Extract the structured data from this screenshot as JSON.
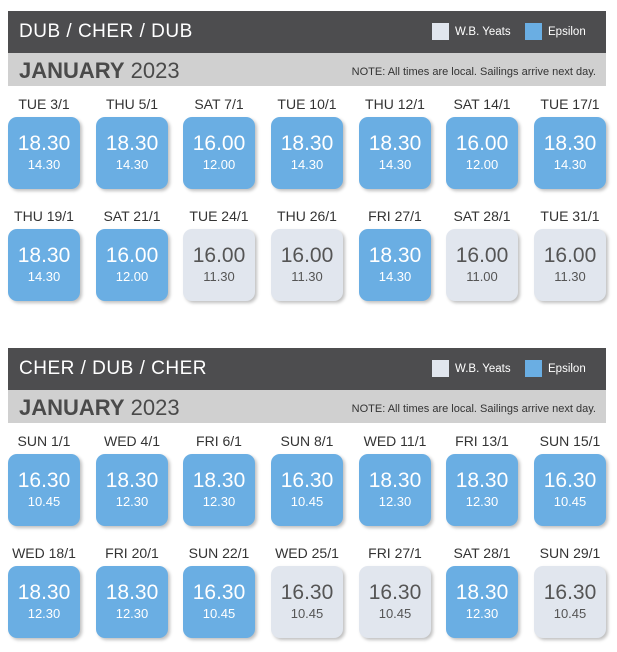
{
  "legend": {
    "wb": "W.B. Yeats",
    "ep": "Epsilon"
  },
  "colors": {
    "epsilon": "#6aaee3",
    "wb_yeats": "#e1e6ee",
    "header": "#4d4d4f"
  },
  "sections": [
    {
      "route": "DUB / CHER / DUB",
      "month_bold": "JANUARY",
      "year": "2023",
      "note": "NOTE: All times are local. Sailings arrive next day.",
      "days": [
        {
          "label": "TUE 3/1",
          "dep": "18.30",
          "arr": "14.30",
          "ship": "ep"
        },
        {
          "label": "THU 5/1",
          "dep": "18.30",
          "arr": "14.30",
          "ship": "ep"
        },
        {
          "label": "SAT 7/1",
          "dep": "16.00",
          "arr": "12.00",
          "ship": "ep"
        },
        {
          "label": "TUE 10/1",
          "dep": "18.30",
          "arr": "14.30",
          "ship": "ep"
        },
        {
          "label": "THU 12/1",
          "dep": "18.30",
          "arr": "14.30",
          "ship": "ep"
        },
        {
          "label": "SAT 14/1",
          "dep": "16.00",
          "arr": "12.00",
          "ship": "ep"
        },
        {
          "label": "TUE 17/1",
          "dep": "18.30",
          "arr": "14.30",
          "ship": "ep"
        },
        {
          "label": "THU 19/1",
          "dep": "18.30",
          "arr": "14.30",
          "ship": "ep"
        },
        {
          "label": "SAT 21/1",
          "dep": "16.00",
          "arr": "12.00",
          "ship": "ep"
        },
        {
          "label": "TUE 24/1",
          "dep": "16.00",
          "arr": "11.30",
          "ship": "wb"
        },
        {
          "label": "THU 26/1",
          "dep": "16.00",
          "arr": "11.30",
          "ship": "wb"
        },
        {
          "label": "FRI 27/1",
          "dep": "18.30",
          "arr": "14.30",
          "ship": "ep"
        },
        {
          "label": "SAT 28/1",
          "dep": "16.00",
          "arr": "11.00",
          "ship": "wb"
        },
        {
          "label": "TUE 31/1",
          "dep": "16.00",
          "arr": "11.30",
          "ship": "wb"
        }
      ]
    },
    {
      "route": "CHER / DUB / CHER",
      "month_bold": "JANUARY",
      "year": "2023",
      "note": "NOTE: All times are local. Sailings arrive next day.",
      "days": [
        {
          "label": "SUN 1/1",
          "dep": "16.30",
          "arr": "10.45",
          "ship": "ep"
        },
        {
          "label": "WED 4/1",
          "dep": "18.30",
          "arr": "12.30",
          "ship": "ep"
        },
        {
          "label": "FRI 6/1",
          "dep": "18.30",
          "arr": "12.30",
          "ship": "ep"
        },
        {
          "label": "SUN 8/1",
          "dep": "16.30",
          "arr": "10.45",
          "ship": "ep"
        },
        {
          "label": "WED 11/1",
          "dep": "18.30",
          "arr": "12.30",
          "ship": "ep"
        },
        {
          "label": "FRI 13/1",
          "dep": "18.30",
          "arr": "12.30",
          "ship": "ep"
        },
        {
          "label": "SUN 15/1",
          "dep": "16.30",
          "arr": "10.45",
          "ship": "ep"
        },
        {
          "label": "WED 18/1",
          "dep": "18.30",
          "arr": "12.30",
          "ship": "ep"
        },
        {
          "label": "FRI 20/1",
          "dep": "18.30",
          "arr": "12.30",
          "ship": "ep"
        },
        {
          "label": "SUN 22/1",
          "dep": "16.30",
          "arr": "10.45",
          "ship": "ep"
        },
        {
          "label": "WED 25/1",
          "dep": "16.30",
          "arr": "10.45",
          "ship": "wb"
        },
        {
          "label": "FRI 27/1",
          "dep": "16.30",
          "arr": "10.45",
          "ship": "wb"
        },
        {
          "label": "SAT 28/1",
          "dep": "18.30",
          "arr": "12.30",
          "ship": "ep"
        },
        {
          "label": "SUN 29/1",
          "dep": "16.30",
          "arr": "10.45",
          "ship": "wb"
        }
      ]
    }
  ]
}
